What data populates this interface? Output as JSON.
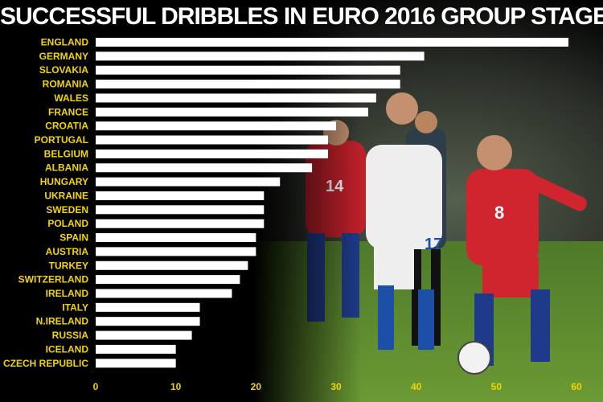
{
  "chart_data": {
    "type": "bar",
    "orientation": "horizontal",
    "title": "SUCCESSFUL DRIBBLES IN EURO 2016 GROUP STAGE",
    "categories": [
      "ENGLAND",
      "GERMANY",
      "SLOVAKIA",
      "ROMANIA",
      "WALES",
      "FRANCE",
      "CROATIA",
      "PORTUGAL",
      "BELGIUM",
      "ALBANIA",
      "HUNGARY",
      "UKRAINE",
      "SWEDEN",
      "POLAND",
      "SPAIN",
      "AUSTRIA",
      "TURKEY",
      "SWITZERLAND",
      "IRELAND",
      "ITALY",
      "N.IRELAND",
      "RUSSIA",
      "ICELAND",
      "CZECH REPUBLIC"
    ],
    "values": [
      59,
      41,
      38,
      38,
      35,
      34,
      30,
      29,
      29,
      27,
      23,
      21,
      21,
      21,
      20,
      20,
      19,
      18,
      17,
      13,
      13,
      12,
      10,
      10
    ],
    "xlim": [
      0,
      60
    ],
    "xticks": [
      0,
      10,
      20,
      30,
      40,
      50,
      60
    ],
    "grid": false,
    "colors": {
      "bar": "#ffffff",
      "labels": "#f2d600",
      "background": "#000000"
    }
  }
}
